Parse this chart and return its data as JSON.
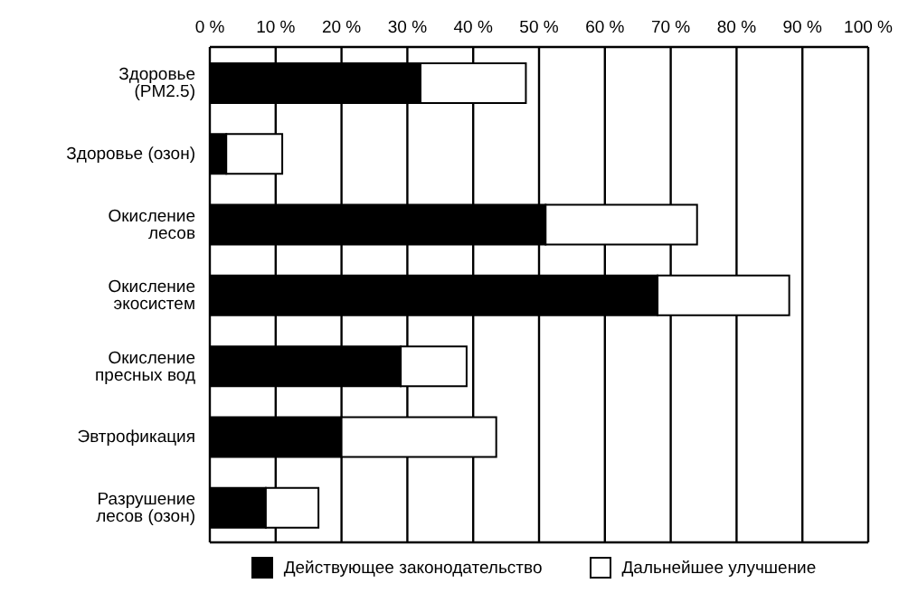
{
  "chart_data": {
    "type": "bar",
    "orientation": "horizontal",
    "stacked": true,
    "categories": [
      "Здоровье (PM2.5)",
      "Здоровье (озон)",
      "Окисление лесов",
      "Окисление экосистем",
      "Окисление пресных вод",
      "Эвтрофикация",
      "Разрушение лесов (озон)"
    ],
    "series": [
      {
        "name": "Действующее законодательство",
        "color": "#000000",
        "values": [
          32,
          2.5,
          51,
          68,
          29,
          20,
          8.5
        ]
      },
      {
        "name": "Дальнейшее улучшение",
        "color": "#ffffff",
        "values": [
          16,
          8.5,
          23,
          20,
          10,
          23.5,
          8
        ]
      }
    ],
    "xlim": [
      0,
      100
    ],
    "xticks": [
      {
        "value": 0,
        "label": "0 %"
      },
      {
        "value": 10,
        "label": "10 %"
      },
      {
        "value": 20,
        "label": "20 %"
      },
      {
        "value": 30,
        "label": "30 %"
      },
      {
        "value": 40,
        "label": "40 %"
      },
      {
        "value": 50,
        "label": "50 %"
      },
      {
        "value": 60,
        "label": "60 %"
      },
      {
        "value": 70,
        "label": "70 %"
      },
      {
        "value": 80,
        "label": "80 %"
      },
      {
        "value": 90,
        "label": "90 %"
      },
      {
        "value": 100,
        "label": "100 %"
      }
    ],
    "grid": "x",
    "legend": "bottom"
  }
}
